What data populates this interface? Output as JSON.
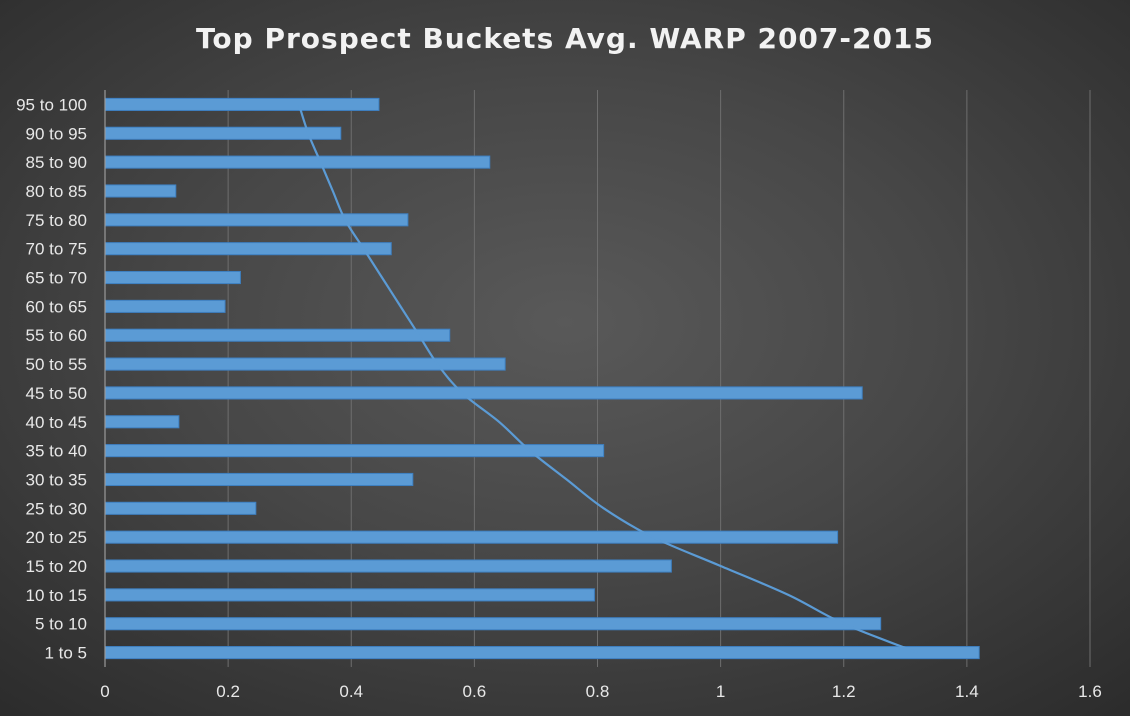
{
  "chart_data": {
    "type": "bar",
    "orientation": "horizontal",
    "title": "Top Prospect Buckets Avg. WARP 2007-2015",
    "xlabel": "",
    "ylabel": "",
    "categories": [
      "1 to 5",
      "5 to 10",
      "10 to 15",
      "15 to 20",
      "20 to 25",
      "25 to 30",
      "30 to 35",
      "35 to 40",
      "40 to 45",
      "45 to 50",
      "50 to 55",
      "55 to 60",
      "60 to 65",
      "65 to 70",
      "70 to 75",
      "75 to 80",
      "80 to 85",
      "85 to 90",
      "90 to 95",
      "95 to 100"
    ],
    "values": [
      1.42,
      1.26,
      0.795,
      0.92,
      1.19,
      0.245,
      0.5,
      0.81,
      0.12,
      1.23,
      0.65,
      0.56,
      0.195,
      0.22,
      0.465,
      0.492,
      0.115,
      0.625,
      0.383,
      0.445
    ],
    "xlim": [
      0,
      1.6
    ],
    "xticks": [
      "0",
      "0.2",
      "0.4",
      "0.6",
      "0.8",
      "1",
      "1.2",
      "1.4",
      "1.6"
    ],
    "grid": "vertical",
    "trendline": {
      "type": "exponential",
      "x": [
        1.32,
        1.2,
        1.11,
        1.0,
        0.89,
        0.81,
        0.75,
        0.69,
        0.64,
        0.58,
        0.54,
        0.51,
        0.48,
        0.45,
        0.42,
        0.39,
        0.37,
        0.35,
        0.33,
        0.315
      ]
    },
    "colors": {
      "bar": "#5b9bd5",
      "bar_edge": "#3e7fc0",
      "trendline": "#5b9bd5",
      "gridline": "#6e6e6e",
      "axis": "#9a9a9a",
      "text": "#e8e8e8"
    }
  }
}
